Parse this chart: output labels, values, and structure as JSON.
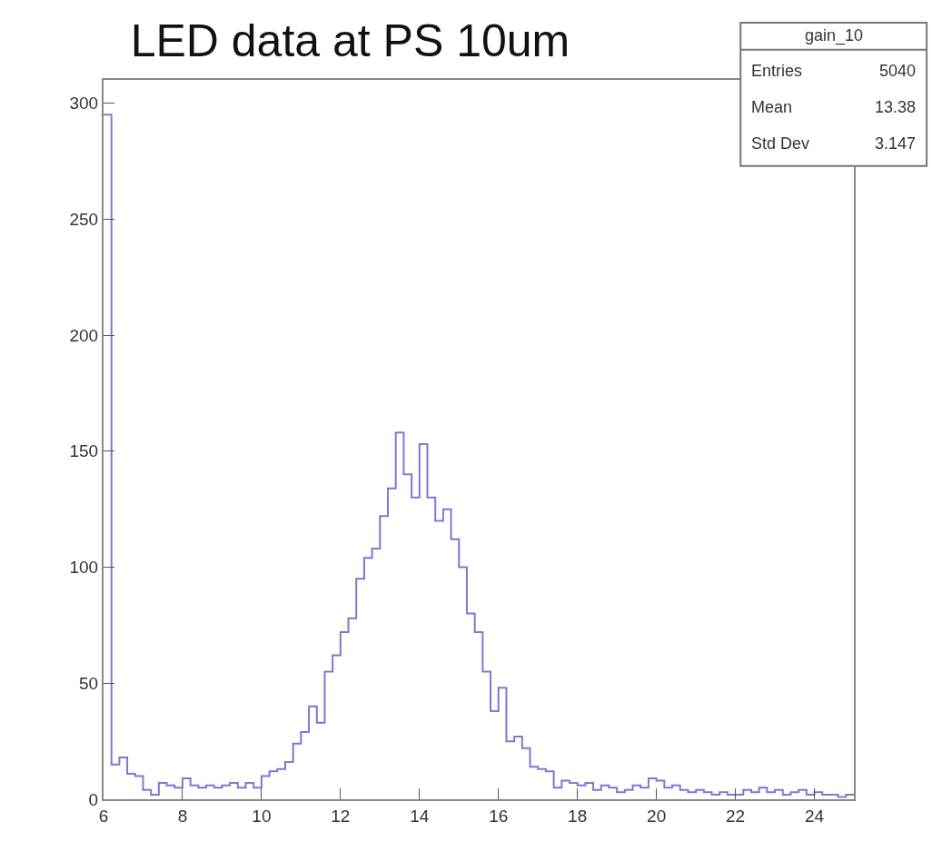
{
  "chart_data": {
    "type": "histogram",
    "title": "LED data at PS 10um",
    "bins": [
      6.0,
      6.2,
      6.4,
      6.6,
      6.8,
      7.0,
      7.2,
      7.4,
      7.6,
      7.8,
      8.0,
      8.2,
      8.4,
      8.6,
      8.8,
      9.0,
      9.2,
      9.4,
      9.6,
      9.8,
      10.0,
      10.2,
      10.4,
      10.6,
      10.8,
      11.0,
      11.2,
      11.4,
      11.6,
      11.8,
      12.0,
      12.2,
      12.4,
      12.6,
      12.8,
      13.0,
      13.2,
      13.4,
      13.6,
      13.8,
      14.0,
      14.2,
      14.4,
      14.6,
      14.8,
      15.0,
      15.2,
      15.4,
      15.6,
      15.8,
      16.0,
      16.2,
      16.4,
      16.6,
      16.8,
      17.0,
      17.2,
      17.4,
      17.6,
      17.8,
      18.0,
      18.2,
      18.4,
      18.6,
      18.8,
      19.0,
      19.2,
      19.4,
      19.6,
      19.8,
      20.0,
      20.2,
      20.4,
      20.6,
      20.8,
      21.0,
      21.2,
      21.4,
      21.6,
      21.8,
      22.0,
      22.2,
      22.4,
      22.6,
      22.8,
      23.0,
      23.2,
      23.4,
      23.6,
      23.8,
      24.0,
      24.2,
      24.4,
      24.6,
      24.8,
      25.0
    ],
    "values": [
      295,
      15,
      18,
      11,
      10,
      4,
      2,
      7,
      6,
      5,
      9,
      6,
      5,
      6,
      5,
      6,
      7,
      5,
      7,
      5,
      10,
      12,
      13,
      16,
      24,
      29,
      40,
      33,
      55,
      62,
      72,
      78,
      95,
      104,
      108,
      122,
      134,
      158,
      140,
      130,
      153,
      130,
      120,
      125,
      112,
      100,
      80,
      72,
      55,
      38,
      48,
      25,
      27,
      22,
      14,
      13,
      12,
      5,
      8,
      7,
      6,
      7,
      4,
      6,
      5,
      3,
      4,
      6,
      5,
      9,
      8,
      5,
      6,
      4,
      3,
      4,
      3,
      2,
      3,
      2,
      2,
      4,
      3,
      5,
      3,
      4,
      2,
      3,
      4,
      2,
      3,
      2,
      2,
      1,
      2
    ],
    "color": "#7a7ad0",
    "xlim": [
      6,
      25
    ],
    "xticks": [
      6,
      8,
      10,
      12,
      14,
      16,
      18,
      20,
      22,
      24
    ],
    "ylim": [
      0,
      310
    ],
    "yticks": [
      0,
      50,
      100,
      150,
      200,
      250,
      300
    ],
    "annotations": [
      "gain_10",
      "Entries",
      "5040",
      "Mean",
      "13.38",
      "Std Dev",
      "3.147"
    ]
  }
}
